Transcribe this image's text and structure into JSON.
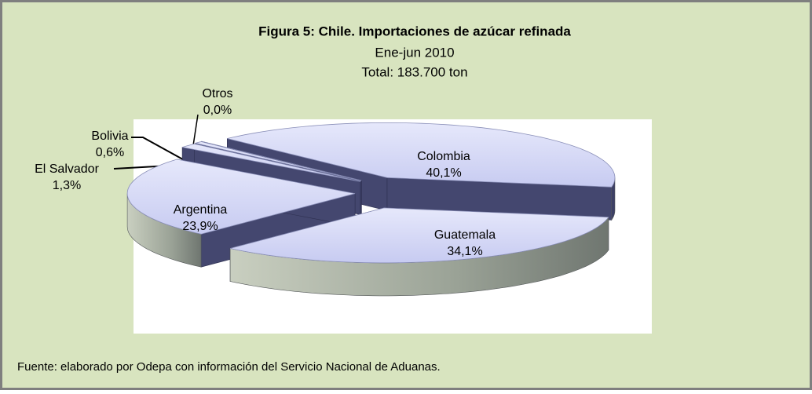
{
  "chart_data": {
    "type": "pie",
    "title": "Figura 5: Chile. Importaciones de azúcar  refinada",
    "subtitle": "Ene-jun 2010",
    "total": "Total: 183.700 ton",
    "source": "Fuente: elaborado por Odepa con información del Servicio Nacional de Aduanas.",
    "categories": [
      "Colombia",
      "Guatemala",
      "Argentina",
      "El Salvador",
      "Bolivia",
      "Otros"
    ],
    "values": [
      40.1,
      34.1,
      23.9,
      1.3,
      0.6,
      0.0
    ],
    "value_labels": [
      "40,1%",
      "34,1%",
      "23,9%",
      "1,3%",
      "0,6%",
      "0,0%"
    ],
    "color": "#c7cbf1"
  }
}
